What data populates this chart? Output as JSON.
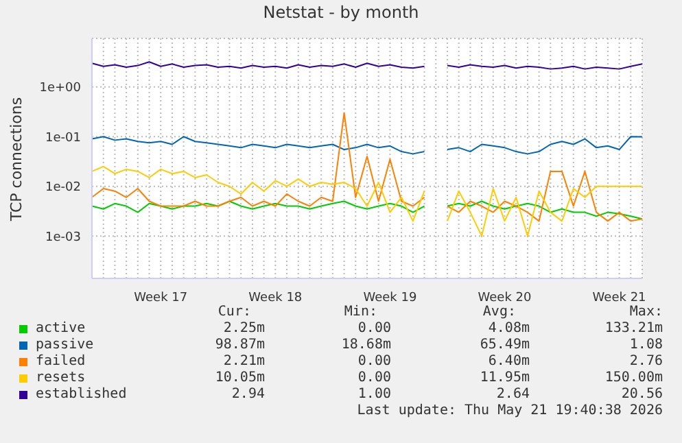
{
  "chart_data": {
    "type": "line",
    "title": "Netstat - by month",
    "ylabel": "TCP connections",
    "log": "y",
    "grid": true,
    "legend": "bottom",
    "marker": "none",
    "line_style": "solid",
    "categories": [
      null,
      null,
      null,
      null,
      null,
      null,
      "Week 17",
      null,
      null,
      null,
      null,
      null,
      null,
      null,
      null,
      null,
      "Week 18",
      null,
      null,
      null,
      null,
      null,
      null,
      null,
      null,
      null,
      "Week 19",
      null,
      null,
      null,
      null,
      null,
      null,
      null,
      null,
      null,
      "Week 20",
      null,
      null,
      null,
      null,
      null,
      null,
      null,
      null,
      null,
      "Week 21",
      null,
      null
    ],
    "ylim": [
      0.00014,
      9.5
    ],
    "yticks": [
      {
        "value": 0.001,
        "label": "1e-03"
      },
      {
        "value": 0.01,
        "label": "1e-02"
      },
      {
        "value": 0.1,
        "label": "1e-01"
      },
      {
        "value": 1,
        "label": "1e+00"
      }
    ],
    "series": [
      {
        "name": "active",
        "color": "#00cc00",
        "values": [
          0.004,
          0.0035,
          0.0045,
          0.004,
          0.003,
          0.0045,
          0.004,
          0.0035,
          0.004,
          0.004,
          0.0045,
          0.004,
          0.005,
          0.004,
          0.0035,
          0.004,
          0.0045,
          0.004,
          0.004,
          0.0035,
          0.004,
          0.0045,
          0.005,
          0.004,
          0.0035,
          0.004,
          0.0045,
          0.004,
          0.003,
          0.004,
          null,
          0.004,
          0.0045,
          0.004,
          0.005,
          0.004,
          0.0035,
          0.004,
          0.0045,
          0.004,
          0.003,
          0.0035,
          0.003,
          0.003,
          0.0025,
          0.003,
          0.0028,
          0.0025,
          0.0022
        ]
      },
      {
        "name": "passive",
        "color": "#0066b3",
        "values": [
          0.09,
          0.1,
          0.085,
          0.09,
          0.08,
          0.075,
          0.08,
          0.07,
          0.1,
          0.08,
          0.075,
          0.07,
          0.065,
          0.06,
          0.07,
          0.065,
          0.06,
          0.07,
          0.065,
          0.06,
          0.065,
          0.07,
          0.055,
          0.06,
          0.07,
          0.06,
          0.065,
          0.05,
          0.045,
          0.05,
          null,
          0.055,
          0.06,
          0.05,
          0.07,
          0.065,
          0.06,
          0.05,
          0.045,
          0.05,
          0.07,
          0.08,
          0.07,
          0.09,
          0.06,
          0.065,
          0.055,
          0.1,
          0.099
        ]
      },
      {
        "name": "failed",
        "color": "#ff8000",
        "values": [
          0.006,
          0.009,
          0.008,
          0.006,
          0.009,
          0.005,
          0.004,
          0.004,
          0.004,
          0.005,
          0.004,
          0.004,
          0.005,
          0.006,
          0.004,
          0.005,
          0.004,
          0.007,
          0.005,
          0.004,
          0.006,
          0.005,
          0.3,
          0.006,
          0.04,
          0.005,
          0.035,
          0.005,
          0.004,
          0.006,
          null,
          0.004,
          0.003,
          0.005,
          0.004,
          0.003,
          0.005,
          0.004,
          0.003,
          0.002,
          0.02,
          0.02,
          0.004,
          0.02,
          0.003,
          0.002,
          0.003,
          0.002,
          0.0022
        ]
      },
      {
        "name": "resets",
        "color": "#ffcc00",
        "values": [
          0.02,
          0.025,
          0.018,
          0.022,
          0.02,
          0.015,
          0.022,
          0.018,
          0.02,
          0.015,
          0.017,
          0.012,
          0.01,
          0.007,
          0.012,
          0.008,
          0.013,
          0.01,
          0.014,
          0.01,
          0.012,
          0.011,
          0.012,
          0.009,
          0.004,
          0.012,
          0.003,
          0.006,
          0.002,
          0.008,
          null,
          0.002,
          0.008,
          0.003,
          0.001,
          0.009,
          0.002,
          0.006,
          0.001,
          0.008,
          0.003,
          0.002,
          0.009,
          0.006,
          0.01,
          0.01,
          0.01,
          0.01,
          0.01
        ]
      },
      {
        "name": "established",
        "color": "#330099",
        "values": [
          3.0,
          2.6,
          2.8,
          2.5,
          2.7,
          3.2,
          2.6,
          2.9,
          2.5,
          2.7,
          2.8,
          2.5,
          2.6,
          2.4,
          2.7,
          2.5,
          2.6,
          2.4,
          2.8,
          2.5,
          2.7,
          2.6,
          2.9,
          2.5,
          3.0,
          2.6,
          2.8,
          2.5,
          2.4,
          2.6,
          null,
          2.7,
          2.5,
          2.8,
          2.6,
          2.5,
          2.7,
          2.4,
          2.6,
          2.5,
          2.3,
          2.4,
          2.6,
          2.3,
          2.5,
          2.4,
          2.3,
          2.6,
          2.9
        ]
      }
    ],
    "annotations": [
      "Cur:",
      "Min:",
      "Avg:",
      "Max:",
      "2.25m",
      "0.00",
      "4.08m",
      "133.21m",
      "98.87m",
      "18.68m",
      "65.49m",
      "1.08",
      "2.21m",
      "0.00",
      "6.40m",
      "2.76",
      "10.05m",
      "0.00",
      "11.95m",
      "150.00m",
      "2.94",
      "1.00",
      "2.64",
      "20.56",
      "Last update: Thu May 21 19:40:38 2026"
    ]
  }
}
